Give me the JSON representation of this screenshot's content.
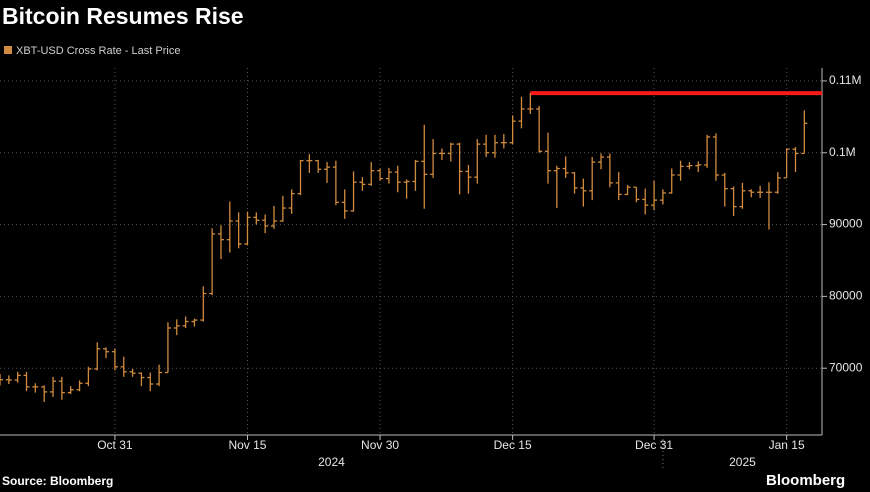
{
  "chart_data": {
    "type": "ohlc",
    "title": "Bitcoin Resumes Rise",
    "source": "Source: Bloomberg",
    "brand": "Bloomberg",
    "xlim": [
      "2024-10-18",
      "2025-01-19"
    ],
    "xticks": [
      {
        "value": "2024-10-31",
        "label": "Oct 31"
      },
      {
        "value": "2024-11-15",
        "label": "Nov 15"
      },
      {
        "value": "2024-11-30",
        "label": "Nov 30"
      },
      {
        "value": "2024-12-15",
        "label": "Dec 15"
      },
      {
        "value": "2024-12-31",
        "label": "Dec 31"
      },
      {
        "value": "2025-01-15",
        "label": "Jan 15"
      }
    ],
    "year_labels": [
      "2024",
      "2025"
    ],
    "ylim": [
      60700,
      111800
    ],
    "yticks": [
      70000,
      80000,
      90000,
      {
        "value": 100000,
        "label": "0.1M"
      },
      {
        "value": 110000,
        "label": "0.11M"
      }
    ],
    "grid": true,
    "x": [
      "2024-10-18",
      "2024-10-19",
      "2024-10-20",
      "2024-10-21",
      "2024-10-22",
      "2024-10-23",
      "2024-10-24",
      "2024-10-25",
      "2024-10-26",
      "2024-10-27",
      "2024-10-28",
      "2024-10-29",
      "2024-10-30",
      "2024-10-31",
      "2024-11-01",
      "2024-11-02",
      "2024-11-03",
      "2024-11-04",
      "2024-11-05",
      "2024-11-06",
      "2024-11-07",
      "2024-11-08",
      "2024-11-09",
      "2024-11-10",
      "2024-11-11",
      "2024-11-12",
      "2024-11-13",
      "2024-11-14",
      "2024-11-15",
      "2024-11-16",
      "2024-11-17",
      "2024-11-18",
      "2024-11-19",
      "2024-11-20",
      "2024-11-21",
      "2024-11-22",
      "2024-11-23",
      "2024-11-24",
      "2024-11-25",
      "2024-11-26",
      "2024-11-27",
      "2024-11-28",
      "2024-11-29",
      "2024-11-30",
      "2024-12-01",
      "2024-12-02",
      "2024-12-03",
      "2024-12-04",
      "2024-12-05",
      "2024-12-06",
      "2024-12-07",
      "2024-12-08",
      "2024-12-09",
      "2024-12-10",
      "2024-12-11",
      "2024-12-12",
      "2024-12-13",
      "2024-12-14",
      "2024-12-15",
      "2024-12-16",
      "2024-12-17",
      "2024-12-18",
      "2024-12-19",
      "2024-12-20",
      "2024-12-21",
      "2024-12-22",
      "2024-12-23",
      "2024-12-24",
      "2024-12-25",
      "2024-12-26",
      "2024-12-27",
      "2024-12-28",
      "2024-12-29",
      "2024-12-30",
      "2024-12-31",
      "2025-01-01",
      "2025-01-02",
      "2025-01-03",
      "2025-01-04",
      "2025-01-05",
      "2025-01-06",
      "2025-01-07",
      "2025-01-08",
      "2025-01-09",
      "2025-01-10",
      "2025-01-11",
      "2025-01-12",
      "2025-01-13",
      "2025-01-14",
      "2025-01-15",
      "2025-01-16",
      "2025-01-17"
    ],
    "series": [
      {
        "name": "XBT-USD Cross Rate - Last Price",
        "color": "#d18b3f",
        "open": [
          68000,
          68400,
          68350,
          69000,
          67400,
          67400,
          66700,
          68200,
          66600,
          67000,
          67900,
          69900,
          72700,
          72300,
          70200,
          69500,
          69300,
          68700,
          67800,
          69400,
          75600,
          75900,
          76500,
          76700,
          80400,
          88700,
          87900,
          90500,
          87300,
          91000,
          90600,
          89800,
          90500,
          92300,
          94300,
          98900,
          98900,
          97700,
          98000,
          93100,
          91900,
          95900,
          95600,
          97500,
          96400,
          97300,
          95900,
          96000,
          98800,
          97000,
          99900,
          99900,
          101200,
          97400,
          96600,
          101200,
          100000,
          101400,
          101400,
          104400,
          106100,
          106100,
          100200,
          97500,
          97800,
          97200,
          95100,
          94700,
          98700,
          99400,
          95800,
          94200,
          95200,
          93500,
          92700,
          93400,
          94400,
          96900,
          98100,
          98200,
          98300,
          102200,
          96900,
          95000,
          92500,
          94700,
          94500,
          94500,
          94500,
          96500,
          100500,
          99900
        ],
        "high": [
          69200,
          69000,
          69500,
          69500,
          67900,
          67600,
          68800,
          68800,
          67500,
          68300,
          70200,
          73600,
          72900,
          72700,
          71600,
          69900,
          69400,
          69400,
          70500,
          76400,
          76800,
          77200,
          76900,
          81400,
          89500,
          89900,
          93200,
          91700,
          91800,
          91700,
          91400,
          92600,
          94000,
          94900,
          99000,
          99800,
          99000,
          98700,
          98900,
          94900,
          97400,
          96600,
          98700,
          97800,
          97900,
          98200,
          96300,
          99000,
          103900,
          101900,
          100600,
          101400,
          101400,
          98300,
          101900,
          102500,
          102500,
          102600,
          105200,
          107800,
          108300,
          106500,
          102800,
          98200,
          99500,
          97300,
          96400,
          99400,
          99900,
          99900,
          97300,
          95500,
          95200,
          95000,
          96100,
          94900,
          97800,
          98900,
          98700,
          98800,
          102500,
          102700,
          97200,
          95300,
          95800,
          94900,
          95400,
          95900,
          97300,
          100600,
          100800,
          105900
        ],
        "low": [
          67600,
          67800,
          68000,
          66800,
          66600,
          65300,
          66000,
          65600,
          66400,
          66800,
          67500,
          69700,
          71400,
          69700,
          68800,
          68800,
          67500,
          66800,
          67500,
          69400,
          74600,
          75600,
          75800,
          76500,
          80200,
          85200,
          86100,
          86700,
          87100,
          90000,
          88800,
          89400,
          90400,
          91500,
          94100,
          97200,
          97200,
          95800,
          92700,
          90800,
          91800,
          94700,
          95400,
          96100,
          95700,
          94500,
          93600,
          94700,
          92200,
          96500,
          99000,
          98800,
          94200,
          94300,
          95700,
          99400,
          99300,
          100600,
          101200,
          103400,
          105400,
          100000,
          95700,
          92300,
          96500,
          94300,
          92500,
          93400,
          97700,
          95200,
          93400,
          94100,
          93100,
          91400,
          92000,
          92800,
          94300,
          96100,
          97700,
          97300,
          97900,
          96100,
          92500,
          91200,
          92200,
          93800,
          93700,
          89300,
          94300,
          96500,
          97300,
          99900
        ],
        "close": [
          68400,
          68350,
          69000,
          67400,
          67400,
          66700,
          68200,
          66600,
          67000,
          67900,
          69900,
          72700,
          72300,
          70200,
          69500,
          69300,
          68700,
          67800,
          69400,
          75600,
          75900,
          76500,
          76700,
          80400,
          88700,
          87900,
          90500,
          87300,
          91000,
          90600,
          89800,
          90500,
          92300,
          94300,
          98900,
          98900,
          97700,
          98000,
          93100,
          91900,
          95900,
          95600,
          97500,
          96400,
          97300,
          95900,
          96000,
          98800,
          97000,
          99900,
          99900,
          101200,
          97400,
          96600,
          101200,
          100000,
          101400,
          101400,
          104400,
          106100,
          106100,
          100200,
          97500,
          97800,
          97200,
          95100,
          94700,
          98700,
          99400,
          95800,
          94200,
          95200,
          93500,
          92700,
          93400,
          94400,
          96900,
          98100,
          98200,
          98300,
          102200,
          96900,
          95000,
          92500,
          94700,
          94500,
          94500,
          94500,
          96500,
          100500,
          99900,
          104100
        ]
      }
    ],
    "reference_line": {
      "value": 108300,
      "start": "2024-12-17",
      "color": "#ff1a1a"
    }
  }
}
